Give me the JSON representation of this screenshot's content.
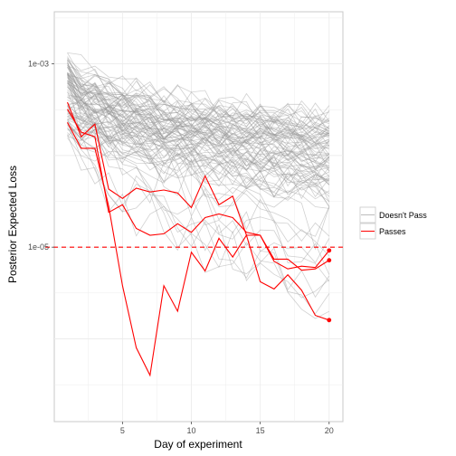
{
  "chart_data": {
    "type": "line",
    "xlabel": "Day of experiment",
    "ylabel": "Posterior Expected Loss",
    "x_ticks": [
      5,
      10,
      15,
      20
    ],
    "y_ticks": [
      {
        "value": 0.001,
        "label": "1e-03"
      },
      {
        "value": 1e-05,
        "label": "1e-05"
      }
    ],
    "y_scale": "log",
    "xlim": [
      0.05,
      21
    ],
    "ylim": [
      1.25e-07,
      0.0037
    ],
    "grid": true,
    "threshold": {
      "value": 1e-05,
      "style": "dashed",
      "color": "#ff0000"
    },
    "legend": {
      "position": "right",
      "items": [
        {
          "label": "Doesn't Pass",
          "color": "#bdbdbd"
        },
        {
          "label": "Passes",
          "color": "#ff0000"
        }
      ]
    },
    "colors": {
      "doesnt_pass": "#bdbdbd",
      "passes": "#ff0000",
      "threshold": "#ff0000",
      "panel_border": "#c8c8c8",
      "grid": "#ececec"
    },
    "passing_series": [
      {
        "x": [
          1,
          2,
          3,
          4,
          5,
          6,
          7,
          8,
          9,
          10,
          11,
          12,
          13,
          14,
          15,
          16,
          17,
          18,
          19,
          20
        ],
        "y": [
          0.00038,
          0.00016,
          0.00022,
          4.3e-05,
          3.4e-05,
          4.4e-05,
          4e-05,
          4.2e-05,
          3.9e-05,
          2.7e-05,
          6e-05,
          2.9e-05,
          3.6e-05,
          1.35e-05,
          1.35e-05,
          7.4e-06,
          7.4e-06,
          5.6e-06,
          5.8e-06,
          7.2e-06
        ]
      },
      {
        "x": [
          1,
          2,
          3,
          4,
          5,
          6,
          7,
          8,
          9,
          10,
          11,
          12,
          13,
          14,
          15,
          16,
          17,
          18,
          19,
          20
        ],
        "y": [
          0.00032,
          0.00018,
          0.00016,
          2.4e-05,
          2.9e-05,
          1.6e-05,
          1.35e-05,
          1.4e-05,
          1.8e-05,
          1.45e-05,
          2.1e-05,
          2.3e-05,
          2.1e-05,
          1.45e-05,
          1.35e-05,
          7e-06,
          5.8e-06,
          6.2e-06,
          6e-06,
          9.2e-06
        ]
      },
      {
        "x": [
          1,
          2,
          3,
          4,
          5,
          6,
          7,
          8,
          9,
          10,
          11,
          12,
          13,
          14,
          15,
          16,
          17,
          18,
          19,
          20
        ],
        "y": [
          0.00023,
          0.00012,
          0.00012,
          2.8e-05,
          3.8e-06,
          8e-07,
          4e-07,
          3.8e-06,
          2e-06,
          8.8e-06,
          5.5e-06,
          1.25e-05,
          7.8e-06,
          1.35e-05,
          4.2e-06,
          3.5e-06,
          5e-06,
          3.4e-06,
          1.8e-06,
          1.6e-06
        ]
      }
    ],
    "passing_endpoints": [
      {
        "x": 20,
        "y": 9.2e-06
      },
      {
        "x": 20,
        "y": 7.2e-06
      },
      {
        "x": 20,
        "y": 1.6e-06
      }
    ],
    "non_passing_summary": {
      "count": 90,
      "x_range": [
        1,
        20
      ],
      "start_y_range": [
        0.00015,
        0.0014
      ],
      "end_y_range": [
        2.5e-06,
        0.0003
      ],
      "note": "dense bundle of grey series above the threshold"
    }
  }
}
